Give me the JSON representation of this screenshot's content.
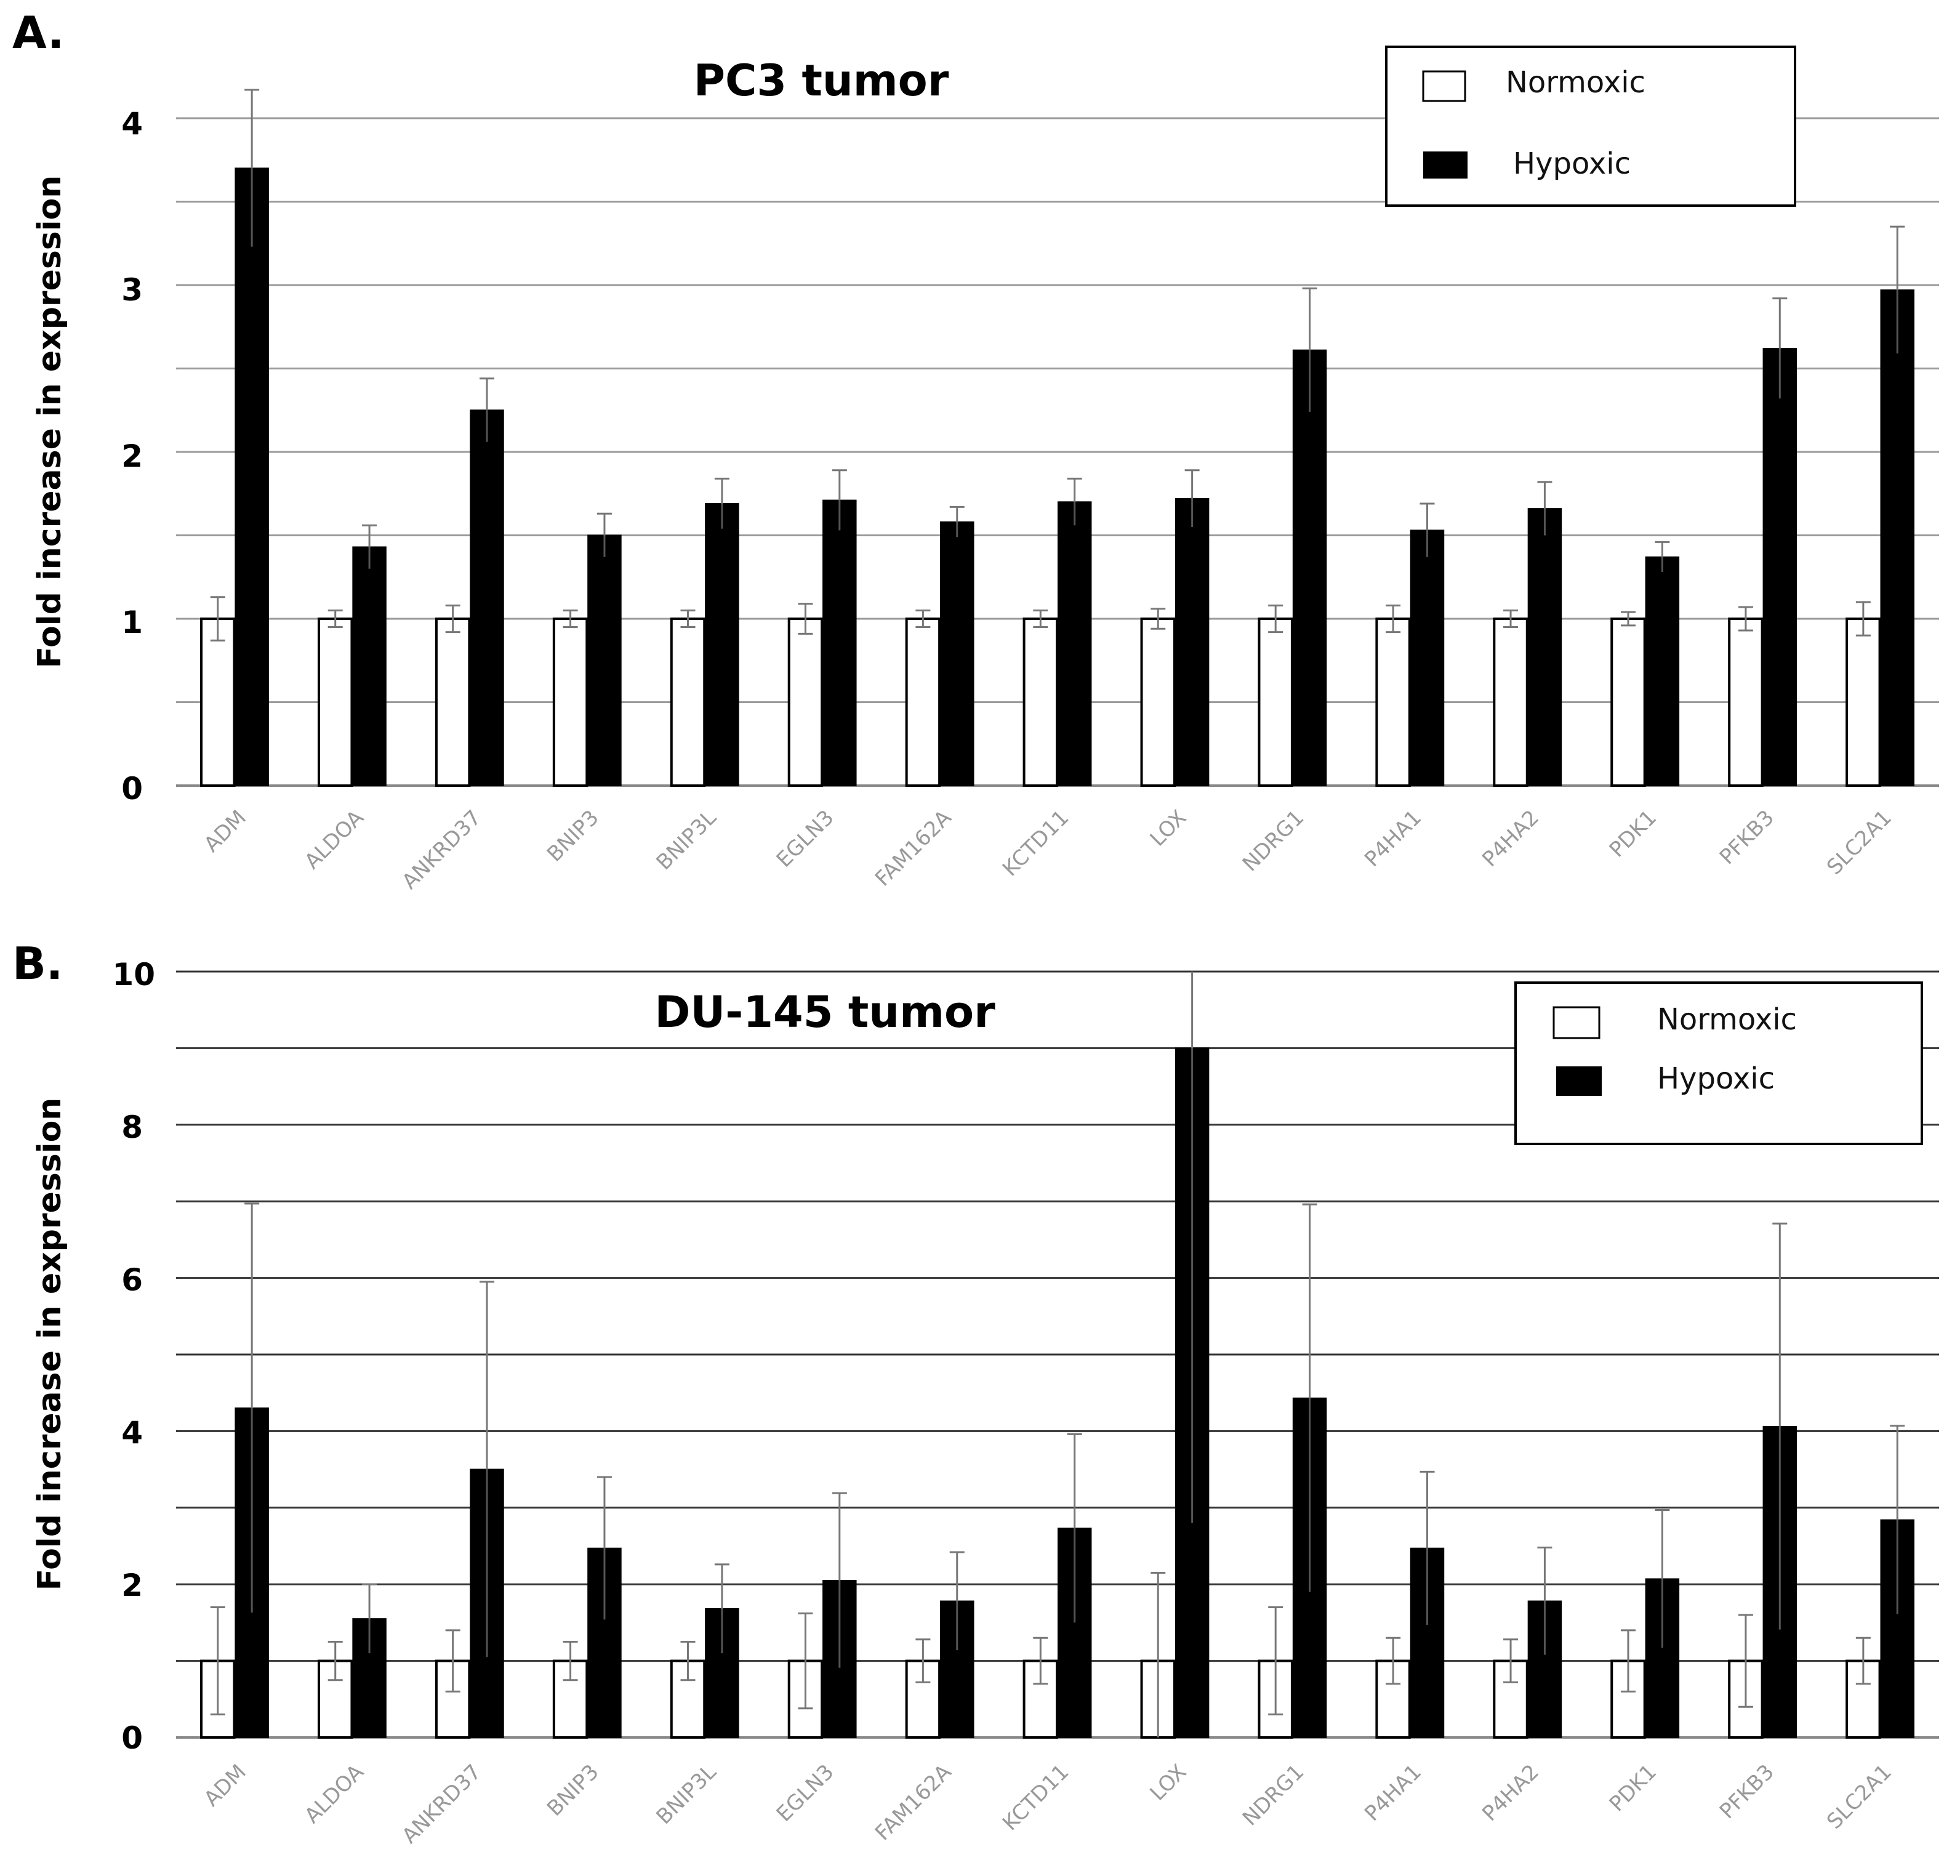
{
  "figure": {
    "panels": [
      {
        "letter": "A.",
        "title": "PC3 tumor",
        "ylabel": "Fold increase in expression",
        "yticks": [
          "0",
          "1",
          "2",
          "3",
          "4"
        ],
        "legend": [
          "Normoxic",
          "Hypoxic"
        ]
      },
      {
        "letter": "B.",
        "title": "DU-145 tumor",
        "ylabel": "Fold increase in expression",
        "yticks": [
          "0",
          "2",
          "4",
          "6",
          "8",
          "10"
        ],
        "legend": [
          "Normoxic",
          "Hypoxic"
        ]
      }
    ]
  },
  "colors": {
    "normoxic": "#ffffff",
    "hypoxic": "#000000",
    "bar_outline": "#000000",
    "gridline": "#9a9a9a"
  },
  "chart_data": [
    {
      "type": "bar",
      "title": "PC3 tumor",
      "xlabel": "",
      "ylabel": "Fold increase in expression",
      "ylim": [
        0,
        4.5
      ],
      "ytick_values": [
        0,
        1,
        2,
        3,
        4
      ],
      "grid_step": 0.5,
      "legend_position": "top-right",
      "categories": [
        "ADM",
        "ALDOA",
        "ANKRD37",
        "BNIP3",
        "BNIP3L",
        "EGLN3",
        "FAM162A",
        "KCTD11",
        "LOX",
        "NDRG1",
        "P4HA1",
        "P4HA2",
        "PDK1",
        "PFKB3",
        "SLC2A1"
      ],
      "series": [
        {
          "name": "Normoxic",
          "values": [
            1,
            1,
            1,
            1,
            1,
            1,
            1,
            1,
            1,
            1,
            1,
            1,
            1,
            1,
            1
          ],
          "errors": [
            0.13,
            0.05,
            0.08,
            0.05,
            0.05,
            0.09,
            0.05,
            0.05,
            0.06,
            0.08,
            0.08,
            0.05,
            0.04,
            0.07,
            0.1
          ]
        },
        {
          "name": "Hypoxic",
          "values": [
            3.7,
            1.43,
            2.25,
            1.5,
            1.69,
            1.71,
            1.58,
            1.7,
            1.72,
            2.61,
            1.53,
            1.66,
            1.37,
            2.62,
            2.97
          ],
          "errors": [
            0.47,
            0.13,
            0.19,
            0.13,
            0.15,
            0.18,
            0.09,
            0.14,
            0.17,
            0.37,
            0.16,
            0.16,
            0.09,
            0.3,
            0.38
          ]
        }
      ]
    },
    {
      "type": "bar",
      "title": "DU-145 tumor",
      "xlabel": "",
      "ylabel": "Fold increase in expression",
      "ylim": [
        0,
        10
      ],
      "ytick_values": [
        0,
        2,
        4,
        6,
        8,
        10
      ],
      "grid_step": 1,
      "legend_position": "top-right",
      "categories": [
        "ADM",
        "ALDOA",
        "ANKRD37",
        "BNIP3",
        "BNIP3L",
        "EGLN3",
        "FAM162A",
        "KCTD11",
        "LOX",
        "NDRG1",
        "P4HA1",
        "P4HA2",
        "PDK1",
        "PFKB3",
        "SLC2A1"
      ],
      "series": [
        {
          "name": "Normoxic",
          "values": [
            1,
            1,
            1,
            1,
            1,
            1,
            1,
            1,
            1,
            1,
            1,
            1,
            1,
            1,
            1
          ],
          "errors": [
            0.7,
            0.25,
            0.4,
            0.25,
            0.25,
            0.62,
            0.28,
            0.3,
            1.15,
            0.7,
            0.3,
            0.28,
            0.4,
            0.6,
            0.3
          ]
        },
        {
          "name": "Hypoxic",
          "values": [
            4.3,
            1.55,
            3.5,
            2.47,
            1.68,
            2.05,
            1.78,
            2.73,
            9.0,
            4.43,
            2.47,
            1.78,
            2.07,
            4.06,
            2.84
          ],
          "errors": [
            2.67,
            0.45,
            2.45,
            0.93,
            0.58,
            1.14,
            0.64,
            1.23,
            6.2,
            2.53,
            1.0,
            0.7,
            0.9,
            2.65,
            1.23
          ]
        }
      ]
    }
  ]
}
